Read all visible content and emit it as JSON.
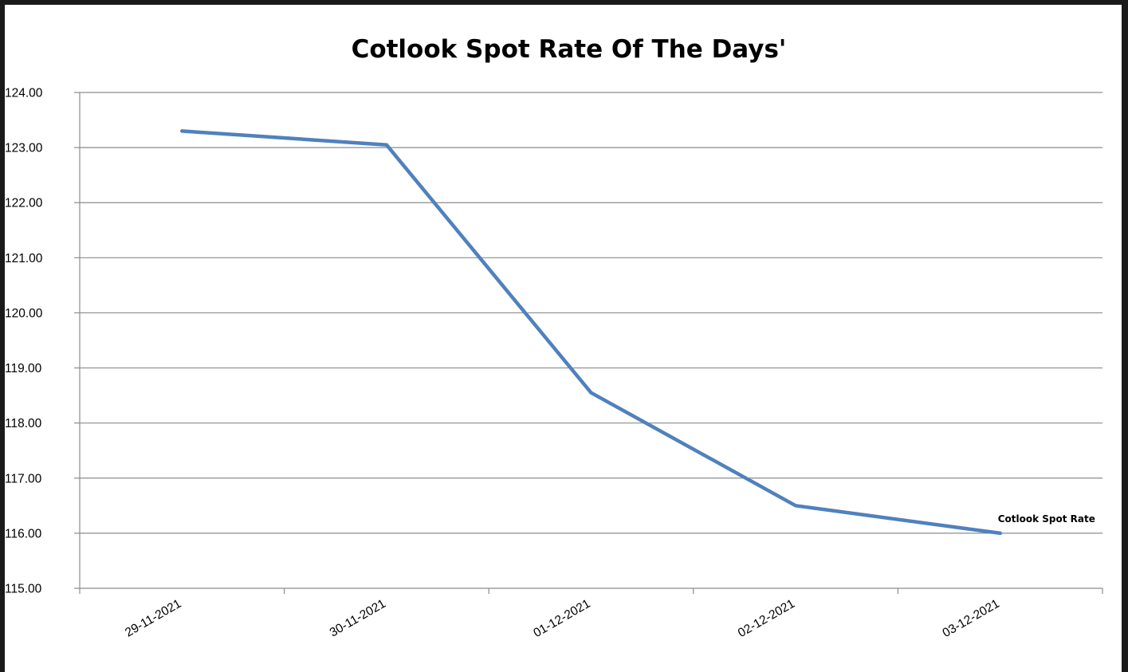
{
  "chart_data": {
    "type": "line",
    "title": "Cotlook Spot Rate Of The Days'",
    "xlabel": "",
    "ylabel": "",
    "categories": [
      "29-11-2021",
      "30-11-2021",
      "01-12-2021",
      "02-12-2021",
      "03-12-2021"
    ],
    "series": [
      {
        "name": "Cotlook Spot Rate",
        "values": [
          123.3,
          123.05,
          118.55,
          116.5,
          116.0
        ],
        "color": "#4f81bd"
      }
    ],
    "ylim": [
      115.0,
      124.0
    ],
    "y_ticks": [
      "115.00",
      "116.00",
      "117.00",
      "118.00",
      "119.00",
      "120.00",
      "121.00",
      "122.00",
      "123.00",
      "124.00"
    ],
    "grid": true,
    "legend": "none",
    "series_label_position": "end-of-line"
  }
}
